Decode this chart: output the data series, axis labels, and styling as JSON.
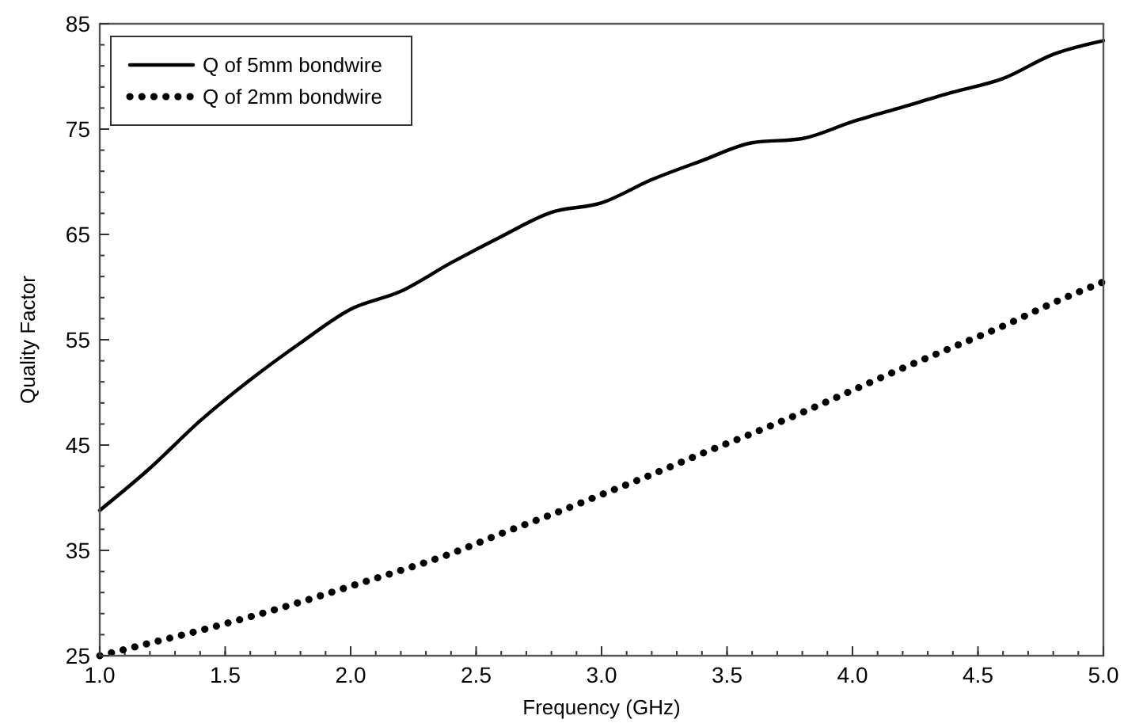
{
  "chart_data": {
    "type": "line",
    "xlabel": "Frequency (GHz)",
    "ylabel": "Quality Factor",
    "x": [
      1.0,
      1.2,
      1.4,
      1.6,
      1.8,
      2.0,
      2.2,
      2.4,
      2.6,
      2.8,
      3.0,
      3.2,
      3.4,
      3.6,
      3.8,
      4.0,
      4.2,
      4.4,
      4.6,
      4.8,
      5.0
    ],
    "series": [
      {
        "name": "Q of 5mm bondwire",
        "color": "#000000",
        "line_style": "solid",
        "values": [
          38.8,
          42.8,
          47.3,
          51.2,
          54.7,
          57.9,
          59.6,
          62.3,
          64.8,
          67.1,
          68.0,
          70.2,
          72.0,
          73.7,
          74.1,
          75.7,
          77.1,
          78.5,
          79.8,
          82.1,
          83.4
        ]
      },
      {
        "name": "Q of 2mm bondwire",
        "color": "#000000",
        "line_style": "dotted",
        "values": [
          25.0,
          26.2,
          27.4,
          28.7,
          30.1,
          31.6,
          33.1,
          34.7,
          36.6,
          38.4,
          40.3,
          42.2,
          44.2,
          46.1,
          48.1,
          50.2,
          52.3,
          54.3,
          56.3,
          58.5,
          60.5
        ]
      }
    ],
    "xlim": [
      1.0,
      5.0
    ],
    "ylim": [
      25,
      85
    ],
    "xticks": [
      {
        "value": 1.0,
        "label": "1.0"
      },
      {
        "value": 1.5,
        "label": "1.5"
      },
      {
        "value": 2.0,
        "label": "2.0"
      },
      {
        "value": 2.5,
        "label": "2.5"
      },
      {
        "value": 3.0,
        "label": "3.0"
      },
      {
        "value": 3.5,
        "label": "3.5"
      },
      {
        "value": 4.0,
        "label": "4.0"
      },
      {
        "value": 4.5,
        "label": "4.5"
      },
      {
        "value": 5.0,
        "label": "5.0"
      }
    ],
    "yticks": [
      25,
      35,
      45,
      55,
      65,
      75,
      85
    ],
    "grid": false,
    "legend": "top left",
    "marker": "none"
  }
}
